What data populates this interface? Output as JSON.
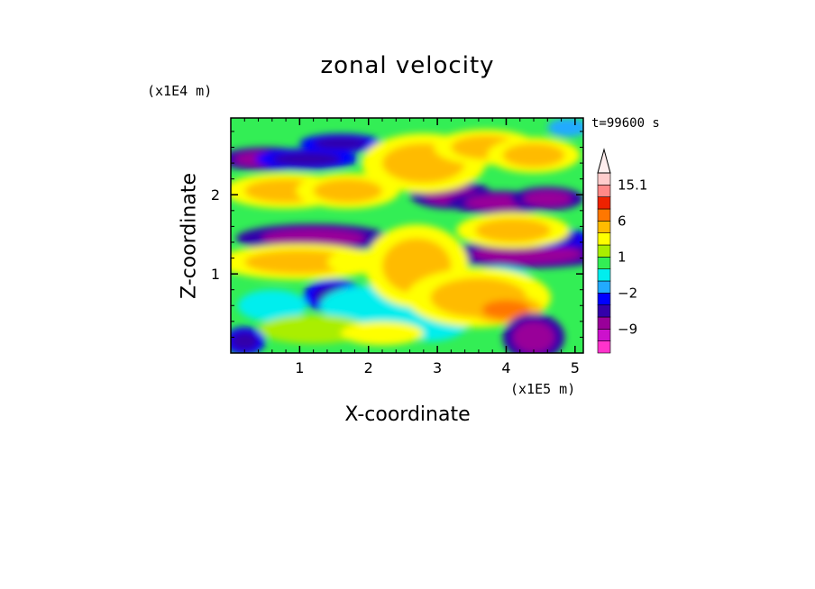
{
  "chart_data": {
    "type": "heatmap",
    "title": "zonal velocity",
    "xlabel": "X-coordinate",
    "ylabel": "Z-coordinate",
    "x_unit_label": "(x1E5 m)",
    "y_unit_label": "(x1E4 m)",
    "time_label": "t=99600 s",
    "xlim": [
      0,
      5.12
    ],
    "ylim": [
      0,
      2.97
    ],
    "x_ticks": [
      1,
      2,
      3,
      4,
      5
    ],
    "y_ticks": [
      1,
      2
    ],
    "colorbar": {
      "levels": [
        -15,
        -12,
        -9,
        -6,
        -3,
        -2,
        -1,
        0,
        1,
        2,
        3,
        6,
        9,
        12,
        15.1
      ],
      "colors": [
        "#ff33cc",
        "#cc11cc",
        "#990099",
        "#3300aa",
        "#0000ff",
        "#22aaff",
        "#00eeee",
        "#33ee55",
        "#aaee00",
        "#ffff00",
        "#ffbb00",
        "#ff7700",
        "#ee2200",
        "#ff8888",
        "#ffcccc"
      ],
      "labels": [
        "15.1",
        "6",
        "1",
        "−2",
        "−9"
      ],
      "label_values": [
        15.1,
        6,
        1,
        -2,
        -9
      ],
      "extend": "max"
    },
    "features": [
      {
        "x": 0.5,
        "z": 2.45,
        "w": 0.45,
        "h": 0.1,
        "v": -8
      },
      {
        "x": 1.1,
        "z": 2.45,
        "w": 0.5,
        "h": 0.09,
        "v": -6
      },
      {
        "x": 1.6,
        "z": 2.65,
        "w": 0.4,
        "h": 0.08,
        "v": -5
      },
      {
        "x": 3.2,
        "z": 2.0,
        "w": 0.4,
        "h": 0.12,
        "v": -7
      },
      {
        "x": 3.9,
        "z": 1.9,
        "w": 0.5,
        "h": 0.1,
        "v": -9
      },
      {
        "x": 4.6,
        "z": 1.95,
        "w": 0.35,
        "h": 0.1,
        "v": -8
      },
      {
        "x": 1.2,
        "z": 1.45,
        "w": 0.75,
        "h": 0.12,
        "v": -8
      },
      {
        "x": 4.3,
        "z": 1.25,
        "w": 0.8,
        "h": 0.12,
        "v": -9
      },
      {
        "x": 4.6,
        "z": 1.45,
        "w": 0.45,
        "h": 0.08,
        "v": -6
      },
      {
        "x": 1.5,
        "z": 0.72,
        "w": 0.3,
        "h": 0.14,
        "v": -6
      },
      {
        "x": 2.0,
        "z": 0.6,
        "w": 0.7,
        "h": 0.25,
        "v": -1
      },
      {
        "x": 0.6,
        "z": 0.6,
        "w": 0.5,
        "h": 0.2,
        "v": -1
      },
      {
        "x": 3.9,
        "z": 0.9,
        "w": 0.5,
        "h": 0.2,
        "v": -1
      },
      {
        "x": 2.9,
        "z": 0.45,
        "w": 0.6,
        "h": 0.3,
        "v": -1
      },
      {
        "x": 0.8,
        "z": 2.05,
        "w": 0.6,
        "h": 0.15,
        "v": 4
      },
      {
        "x": 1.7,
        "z": 2.05,
        "w": 0.5,
        "h": 0.15,
        "v": 3
      },
      {
        "x": 2.8,
        "z": 2.4,
        "w": 0.6,
        "h": 0.25,
        "v": 5
      },
      {
        "x": 3.7,
        "z": 2.6,
        "w": 0.5,
        "h": 0.15,
        "v": 3
      },
      {
        "x": 4.4,
        "z": 2.5,
        "w": 0.45,
        "h": 0.15,
        "v": 3
      },
      {
        "x": 1.0,
        "z": 1.15,
        "w": 0.8,
        "h": 0.15,
        "v": 3
      },
      {
        "x": 1.9,
        "z": 1.15,
        "w": 0.5,
        "h": 0.15,
        "v": 2
      },
      {
        "x": 2.7,
        "z": 1.1,
        "w": 0.5,
        "h": 0.35,
        "v": 3
      },
      {
        "x": 4.1,
        "z": 1.55,
        "w": 0.55,
        "h": 0.15,
        "v": 4
      },
      {
        "x": 3.6,
        "z": 0.7,
        "w": 0.7,
        "h": 0.25,
        "v": 3
      },
      {
        "x": 4.0,
        "z": 0.55,
        "w": 0.35,
        "h": 0.12,
        "v": 6
      },
      {
        "x": 1.2,
        "z": 0.3,
        "w": 0.8,
        "h": 0.18,
        "v": 1
      },
      {
        "x": 2.2,
        "z": 0.25,
        "w": 0.6,
        "h": 0.15,
        "v": 2
      },
      {
        "x": 4.4,
        "z": 0.2,
        "w": 0.3,
        "h": 0.2,
        "v": -9
      },
      {
        "x": 0.2,
        "z": 0.15,
        "w": 0.2,
        "h": 0.12,
        "v": -6
      },
      {
        "x": 4.9,
        "z": 2.85,
        "w": 0.3,
        "h": 0.12,
        "v": -2
      }
    ]
  }
}
